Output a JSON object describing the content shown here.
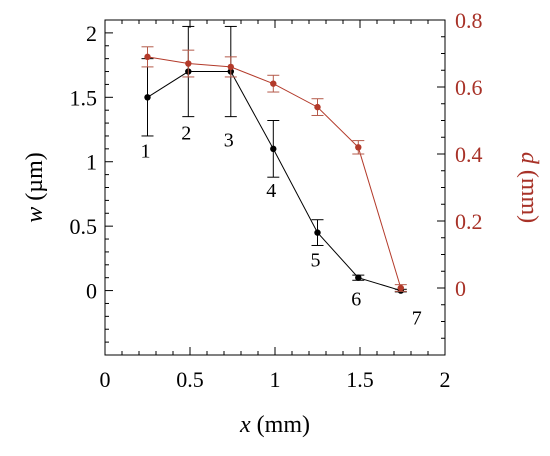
{
  "chart_data": {
    "type": "line",
    "title": "",
    "xlabel": {
      "var": "x",
      "unit": " (mm)"
    },
    "ylabel_left": {
      "var": "w",
      "unit": " (µm)"
    },
    "ylabel_right": {
      "var": "d",
      "unit": " (mm)"
    },
    "xlim": [
      0,
      2
    ],
    "ylim_left": [
      -0.5,
      2.1
    ],
    "ylim_right": [
      -0.2,
      0.8
    ],
    "xticks": [
      "0",
      "0.5",
      "1",
      "1.5",
      "2"
    ],
    "yticks_left": [
      "0",
      "0.5",
      "1",
      "1.5",
      "2"
    ],
    "yticks_right": [
      "0",
      "0.2",
      "0.4",
      "0.6",
      "0.8"
    ],
    "colors": {
      "w_series": "#000000",
      "d_series": "#b33a2a",
      "right_axis": "#a83228"
    },
    "grid": false,
    "series": [
      {
        "axis": "left",
        "x": [
          0.25,
          0.49,
          0.74,
          0.99,
          1.25,
          1.49,
          1.74
        ],
        "y": [
          1.5,
          1.7,
          1.7,
          1.1,
          0.45,
          0.1,
          0.0
        ],
        "err": [
          0.3,
          0.35,
          0.35,
          0.22,
          0.1,
          0.02,
          0.01
        ]
      },
      {
        "axis": "right",
        "x": [
          0.25,
          0.49,
          0.74,
          0.99,
          1.25,
          1.49,
          1.74
        ],
        "y": [
          0.69,
          0.67,
          0.66,
          0.61,
          0.54,
          0.42,
          0.0
        ],
        "err": [
          0.03,
          0.04,
          0.03,
          0.025,
          0.025,
          0.02,
          0.01
        ]
      }
    ],
    "point_labels": [
      "1",
      "2",
      "3",
      "4",
      "5",
      "6",
      "7"
    ]
  }
}
